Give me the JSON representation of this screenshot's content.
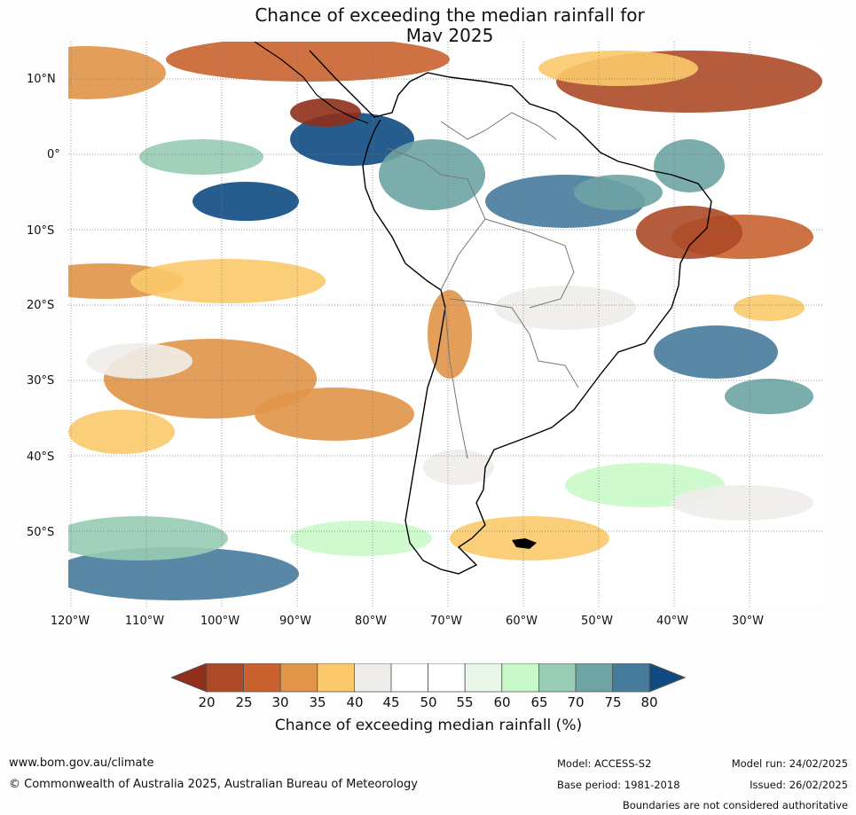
{
  "title_line1": "Chance of exceeding the median rainfall for",
  "title_line2": "May 2025",
  "lat_labels": [
    "10°N",
    "0°",
    "10°S",
    "20°S",
    "30°S",
    "40°S",
    "50°S"
  ],
  "lon_labels": [
    "120°W",
    "110°W",
    "100°W",
    "90°W",
    "80°W",
    "70°W",
    "60°W",
    "50°W",
    "40°W",
    "30°W"
  ],
  "colorbar": {
    "ticks": [
      "20",
      "25",
      "30",
      "35",
      "40",
      "45",
      "50",
      "55",
      "60",
      "65",
      "70",
      "75",
      "80"
    ],
    "colors": [
      "#8f2f1a",
      "#ad4a28",
      "#c9622f",
      "#e09548",
      "#fbc96a",
      "#efedea",
      "#ffffff",
      "#ffffff",
      "#e8f6ea",
      "#c9f9c9",
      "#98ccb4",
      "#6ea4a4",
      "#467b9c",
      "#0f4a82"
    ],
    "label": "Chance of exceeding median rainfall (%)"
  },
  "footer": {
    "website": "www.bom.gov.au/climate",
    "copyright": "© Commonwealth of Australia 2025, Australian Bureau of Meteorology",
    "model": "Model: ACCESS-S2",
    "base_period": "Base period: 1981-2018",
    "model_run": "Model run: 24/02/2025",
    "issued": "Issued: 26/02/2025",
    "disclaimer": "Boundaries are not considered authoritative"
  }
}
